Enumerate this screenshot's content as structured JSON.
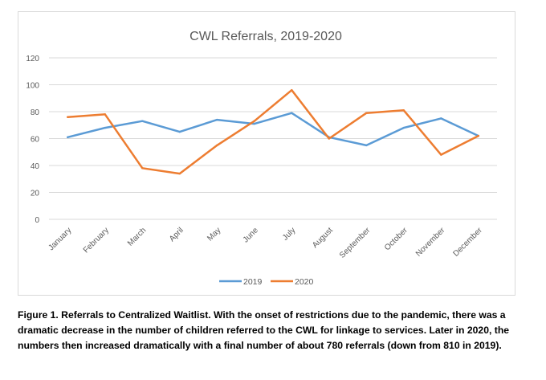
{
  "chart_data": {
    "type": "line",
    "title": "CWL Referrals, 2019-2020",
    "xlabel": "",
    "ylabel": "",
    "categories": [
      "January",
      "February",
      "March",
      "April",
      "May",
      "June",
      "July",
      "August",
      "September",
      "October",
      "November",
      "December"
    ],
    "ylim": [
      0,
      120
    ],
    "yticks": [
      0,
      20,
      40,
      60,
      80,
      100,
      120
    ],
    "grid": true,
    "legend_position": "bottom",
    "series": [
      {
        "name": "2019",
        "color": "#5B9BD5",
        "values": [
          61,
          68,
          73,
          65,
          74,
          71,
          79,
          61,
          55,
          68,
          75,
          62
        ]
      },
      {
        "name": "2020",
        "color": "#ED7D31",
        "values": [
          76,
          78,
          38,
          34,
          55,
          73,
          96,
          60,
          79,
          81,
          48,
          62
        ]
      }
    ]
  },
  "caption": "Figure 1. Referrals to Centralized Waitlist. With the onset of restrictions due to the pandemic, there was a dramatic decrease in the number of children referred to the CWL for linkage to services. Later in 2020, the numbers then increased dramatically with a final number of about 780 referrals (down from 810 in 2019)."
}
